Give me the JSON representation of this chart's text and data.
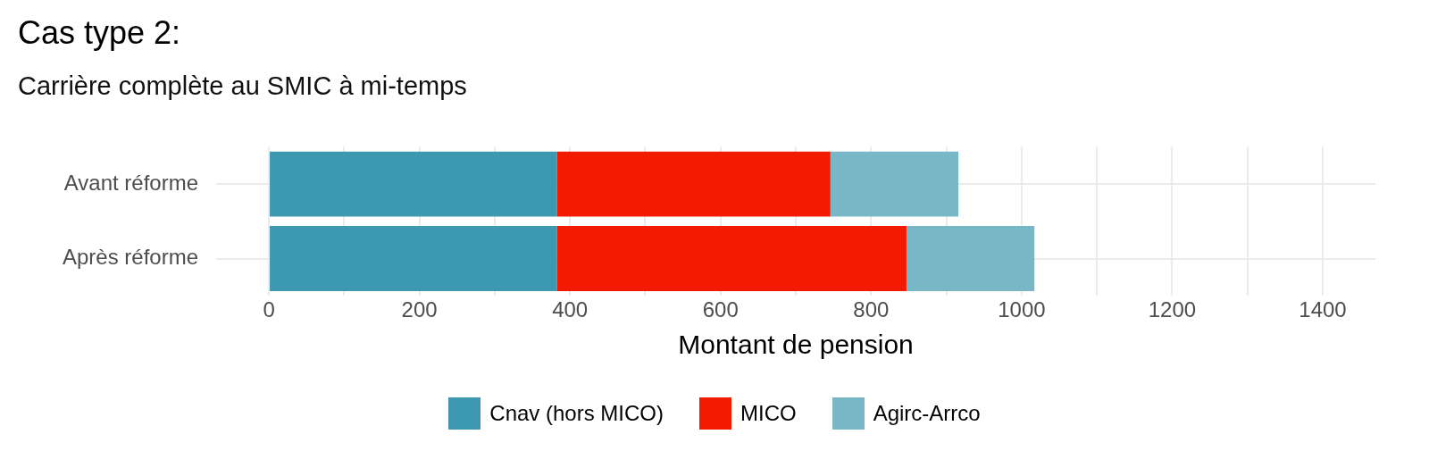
{
  "chart_data": {
    "type": "bar",
    "orientation": "horizontal",
    "stacked": true,
    "title": "Cas type 2:",
    "subtitle": "Carrière complète au SMIC à mi-temps",
    "xlabel": "Montant de pension",
    "categories": [
      "Avant réforme",
      "Après réforme"
    ],
    "series": [
      {
        "name": "Cnav (hors MICO)",
        "color": "#3d98b1",
        "values": [
          383,
          383
        ]
      },
      {
        "name": "MICO",
        "color": "#f21a00",
        "values": [
          363,
          464
        ]
      },
      {
        "name": "Agirc-Arrco",
        "color": "#78b7c5",
        "values": [
          170,
          170
        ]
      }
    ],
    "xlim": [
      -70,
      1470
    ],
    "xticks": [
      0,
      {
        "value": 100,
        "label": null
      },
      200,
      {
        "value": 300,
        "label": null
      },
      400,
      {
        "value": 500,
        "label": null
      },
      600,
      {
        "value": 700,
        "label": null
      },
      800,
      {
        "value": 900,
        "label": null
      },
      1000,
      {
        "value": 1100,
        "label": null
      },
      1200,
      {
        "value": 1300,
        "label": null
      },
      1400
    ],
    "grid": true,
    "legend": "bottom"
  }
}
